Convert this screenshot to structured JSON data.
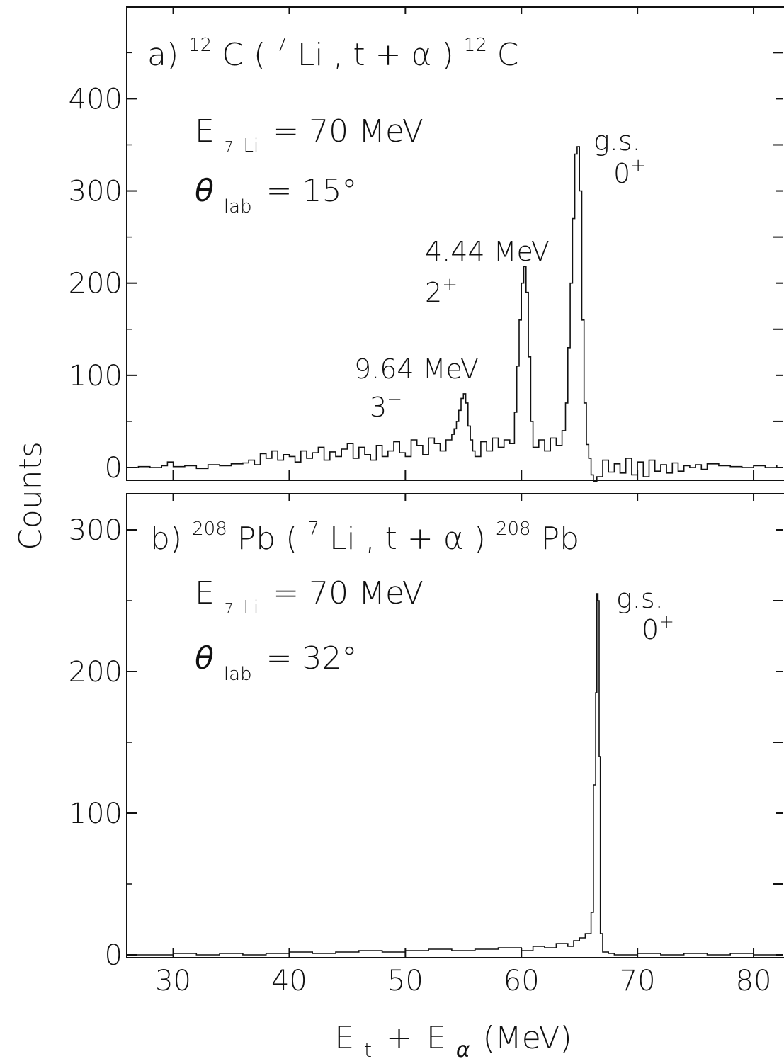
{
  "chart_data": [
    {
      "type": "line",
      "panel_label": "a)",
      "reaction": {
        "target_mass": "12",
        "target": "C",
        "projectile_mass": "7",
        "projectile": "Li",
        "ejectiles": "t + α",
        "residual_mass": "12",
        "residual": "C"
      },
      "conditions": {
        "energy_symbol": "E",
        "energy_sub": "7",
        "energy_sub2": "Li",
        "energy_value": "= 70 MeV",
        "angle_symbol": "θ",
        "angle_sub": "lab",
        "angle_value": "= 15°"
      },
      "xlim": [
        26,
        82.5
      ],
      "ylim": [
        -15,
        490
      ],
      "yticks": [
        0,
        100,
        200,
        300,
        400
      ],
      "ytick_labels": [
        "0",
        "100",
        "200",
        "300",
        "400"
      ],
      "peaks": [
        {
          "energy": "9.64 MeV",
          "spin": "3",
          "parity": "−",
          "x": 55.0
        },
        {
          "energy": "4.44 MeV",
          "spin": "2",
          "parity": "+",
          "x": 60.3
        },
        {
          "energy": "g.s.",
          "spin": "0",
          "parity": "+",
          "x": 64.8
        }
      ],
      "x": [
        26.0,
        27.0,
        28.0,
        29.0,
        29.5,
        30.0,
        31.0,
        32.0,
        33.0,
        34.0,
        35.0,
        36.0,
        36.5,
        37.0,
        37.5,
        38.0,
        38.5,
        39.0,
        39.5,
        40.0,
        40.5,
        41.0,
        41.5,
        42.0,
        42.5,
        43.0,
        43.5,
        44.0,
        44.5,
        45.0,
        45.5,
        46.0,
        46.5,
        47.0,
        47.5,
        48.0,
        48.5,
        49.0,
        49.5,
        50.0,
        50.5,
        51.0,
        51.5,
        52.0,
        52.5,
        53.0,
        53.5,
        54.0,
        54.2,
        54.4,
        54.6,
        54.8,
        55.0,
        55.2,
        55.4,
        55.6,
        55.8,
        56.0,
        56.5,
        57.0,
        57.5,
        58.0,
        58.5,
        59.0,
        59.4,
        59.6,
        59.8,
        60.0,
        60.2,
        60.4,
        60.6,
        60.8,
        61.0,
        61.5,
        62.0,
        62.5,
        63.0,
        63.5,
        63.8,
        64.0,
        64.2,
        64.4,
        64.6,
        64.8,
        65.0,
        65.2,
        65.4,
        65.6,
        65.8,
        66.0,
        66.2,
        66.5,
        67.0,
        67.5,
        68.0,
        68.5,
        69.0,
        69.5,
        70.0,
        70.5,
        71.0,
        71.5,
        72.0,
        72.5,
        73.0,
        73.5,
        74.0,
        74.5,
        75.0,
        75.5,
        76.0,
        77.0,
        78.0,
        79.0,
        80.0,
        81.0,
        82.0
      ],
      "y": [
        0,
        1,
        0,
        2,
        6,
        1,
        2,
        -1,
        3,
        2,
        4,
        5,
        8,
        3,
        15,
        10,
        18,
        8,
        14,
        12,
        6,
        18,
        10,
        16,
        22,
        8,
        17,
        12,
        20,
        26,
        10,
        22,
        14,
        8,
        24,
        12,
        18,
        28,
        16,
        12,
        30,
        24,
        14,
        32,
        26,
        18,
        30,
        36,
        42,
        50,
        62,
        75,
        80,
        70,
        45,
        30,
        18,
        12,
        28,
        18,
        32,
        22,
        30,
        26,
        60,
        110,
        160,
        200,
        218,
        190,
        120,
        50,
        22,
        30,
        18,
        32,
        24,
        40,
        70,
        130,
        200,
        270,
        340,
        348,
        300,
        160,
        70,
        25,
        10,
        -8,
        -15,
        -10,
        8,
        -5,
        4,
        -6,
        10,
        -8,
        6,
        -10,
        8,
        -4,
        3,
        -6,
        5,
        -4,
        2,
        0,
        3,
        -2,
        4,
        2,
        1,
        0,
        2,
        0,
        3
      ]
    },
    {
      "type": "line",
      "panel_label": "b)",
      "reaction": {
        "target_mass": "208",
        "target": "Pb",
        "projectile_mass": "7",
        "projectile": "Li",
        "ejectiles": "t + α",
        "residual_mass": "208",
        "residual": "Pb"
      },
      "conditions": {
        "energy_symbol": "E",
        "energy_sub": "7",
        "energy_sub2": "Li",
        "energy_value": "= 70 MeV",
        "angle_symbol": "θ",
        "angle_sub": "lab",
        "angle_value": "= 32°"
      },
      "xlim": [
        26,
        82.5
      ],
      "ylim": [
        -3,
        323
      ],
      "yticks": [
        0,
        100,
        200,
        300
      ],
      "ytick_labels": [
        "0",
        "100",
        "200",
        "300"
      ],
      "xticks": [
        30,
        40,
        50,
        60,
        70,
        80
      ],
      "xtick_labels": [
        "30",
        "40",
        "50",
        "60",
        "70",
        "80"
      ],
      "peaks": [
        {
          "energy": "g.s.",
          "spin": "0",
          "parity": "+",
          "x": 66.6
        }
      ],
      "x": [
        26.0,
        28.0,
        30.0,
        32.0,
        34.0,
        36.0,
        38.0,
        40.0,
        42.0,
        44.0,
        46.0,
        48.0,
        50.0,
        52.0,
        54.0,
        56.0,
        58.0,
        60.0,
        61.0,
        62.0,
        63.0,
        64.0,
        64.5,
        65.0,
        65.5,
        66.0,
        66.2,
        66.4,
        66.5,
        66.6,
        66.7,
        66.8,
        67.0,
        67.5,
        68.0,
        70.0,
        72.0,
        74.0,
        76.0,
        78.0,
        80.0,
        82.0
      ],
      "y": [
        0,
        0,
        1,
        0,
        1,
        0,
        1,
        2,
        1,
        2,
        3,
        2,
        3,
        4,
        3,
        4,
        5,
        3,
        6,
        5,
        8,
        6,
        10,
        12,
        15,
        30,
        120,
        185,
        255,
        250,
        140,
        15,
        2,
        1,
        0,
        1,
        0,
        1,
        0,
        1,
        0,
        0
      ]
    }
  ],
  "axes": {
    "ylabel": "Counts",
    "xlabel": {
      "e1": "E",
      "sub1": "t",
      "plus": "+",
      "e2": "E",
      "sub2": "α",
      "unit": "(MeV)"
    }
  }
}
